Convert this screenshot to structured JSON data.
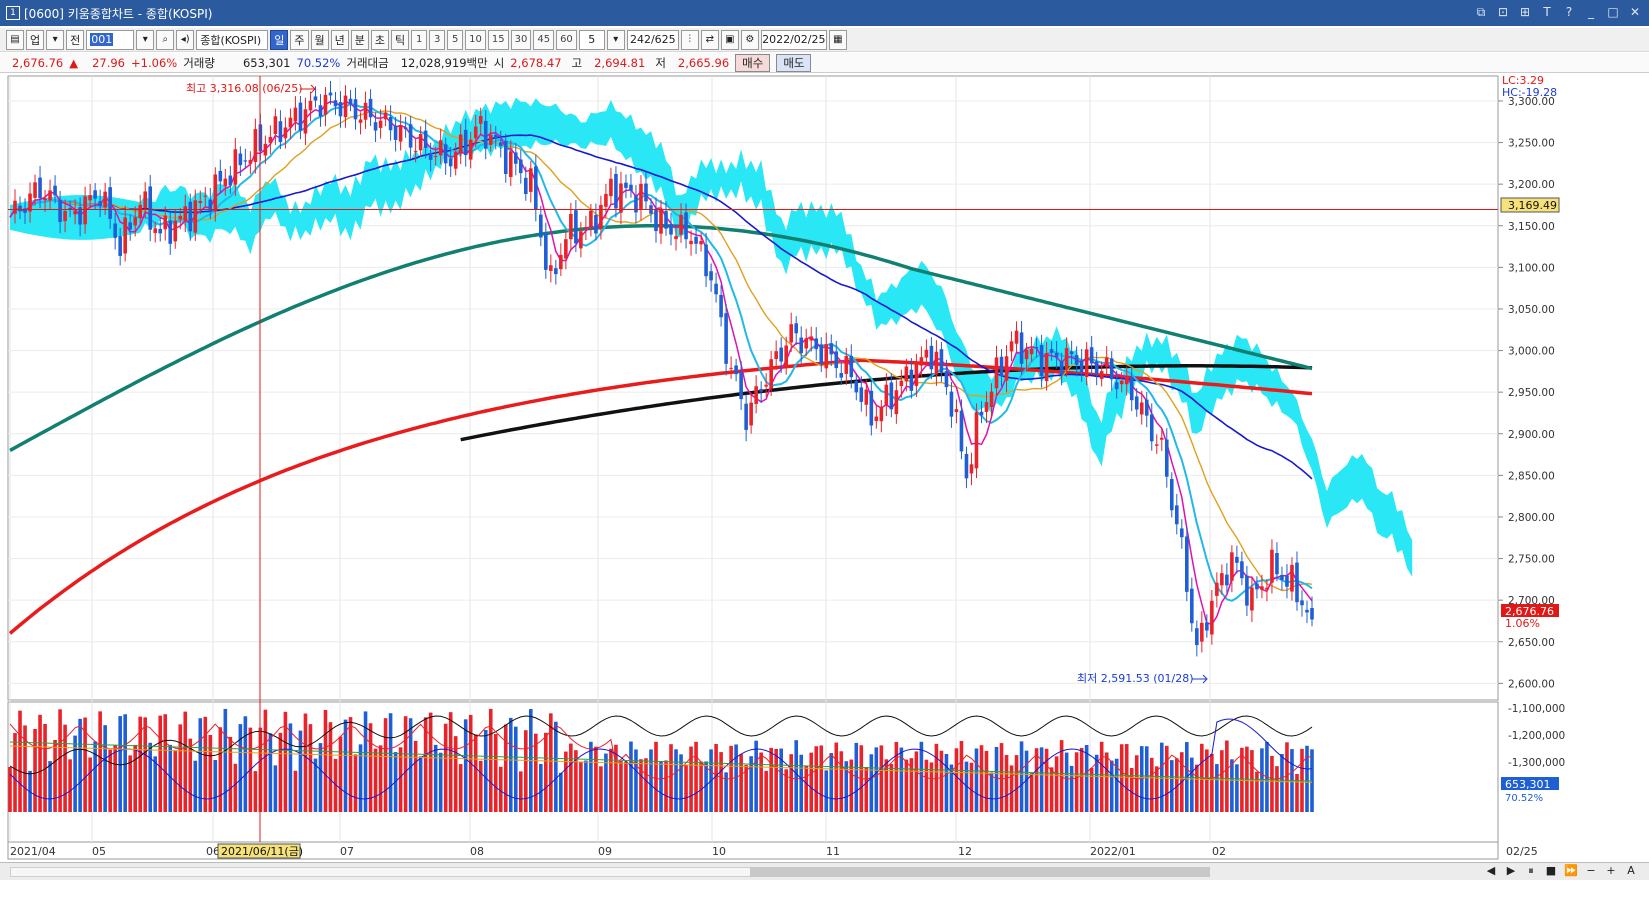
{
  "window": {
    "title": "[0600] 키움종합차트 - 종합(KOSPI)",
    "window_icon": "1",
    "controls": [
      "⧉",
      "⊡",
      "⊞",
      "T",
      "?",
      "_",
      "□",
      "✕"
    ]
  },
  "toolbar": {
    "market": "업",
    "prev": "전",
    "code": "001",
    "name": "종합(KOSPI)",
    "periods": [
      "일",
      "주",
      "월",
      "년",
      "분",
      "초",
      "틱"
    ],
    "active_period": "일",
    "minute_units": [
      "1",
      "3",
      "5",
      "10",
      "15",
      "30",
      "45",
      "60"
    ],
    "unit_value": "5",
    "count": "242/625",
    "date": "2022/02/25"
  },
  "info": {
    "price": "2,676.76",
    "direction": "▲",
    "change": "27.96",
    "change_pct": "+1.06%",
    "volume_label": "거래량",
    "volume": "653,301",
    "volume_ratio": "70.52%",
    "amount_label": "거래대금",
    "amount": "12,028,919백만",
    "open_label": "시",
    "open": "2,678.47",
    "high_label": "고",
    "high": "2,694.81",
    "low_label": "저",
    "low": "2,665.96",
    "buy_button": "매수",
    "sell_button": "매도"
  },
  "chart": {
    "lc_label": "LC:3.29",
    "hc_label": "HC:-19.28",
    "crosshair_value": "3,169.49",
    "crosshair_date": "2021/06/11(금)",
    "high_annotation": "최고 3,316.08 (06/25)",
    "low_annotation": "최저 2,591.53 (01/28)",
    "current_price_label": "2,676.76",
    "current_pct_label": "1.06%",
    "volume_current_label": "653,301",
    "volume_pct_label": "70.52%",
    "x_labels": [
      "2021/04",
      "05",
      "06",
      "07",
      "08",
      "09",
      "10",
      "11",
      "12",
      "2022/01",
      "02",
      "02/25"
    ],
    "price_ticks": [
      "3,300.00",
      "3,250.00",
      "3,200.00",
      "3,150.00",
      "3,100.00",
      "3,050.00",
      "3,000.00",
      "2,950.00",
      "2,900.00",
      "2,850.00",
      "2,800.00",
      "2,750.00",
      "2,700.00",
      "2,650.00",
      "2,600.00"
    ],
    "volume_ticks": [
      "-1,100,000",
      "-1,200,000",
      "-1,300,000"
    ],
    "colors": {
      "up": "#e8232a",
      "down": "#1f5fd6",
      "cloud": "#1fe6f5",
      "ma5": "#e010b0",
      "ma20": "#22b8e8",
      "ma60": "#e0a020",
      "ma120": "#1818d0",
      "ma240": "#118070",
      "ma_red": "#e81c1c",
      "ma_black": "#111111"
    }
  },
  "chart_data": {
    "type": "candlestick",
    "title": "종합(KOSPI)",
    "period": "일",
    "x_range": [
      "2021/04",
      "2022/02/25"
    ],
    "ylim": [
      2580,
      3330
    ],
    "high": {
      "value": 3316.08,
      "date": "06/25"
    },
    "low": {
      "value": 2591.53,
      "date": "01/28"
    },
    "last": {
      "open": 2678.47,
      "high": 2694.81,
      "low": 2665.96,
      "close": 2676.76,
      "change": 27.96,
      "change_pct": 1.06,
      "volume": 653301
    },
    "monthly_closes_approx": {
      "2021/04": 3150,
      "2021/05": 3200,
      "2021/06": 3296,
      "2021/07": 3202,
      "2021/08": 3199,
      "2021/09": 3068,
      "2021/10": 2970,
      "2021/11": 2839,
      "2021/12": 2977,
      "2022/01": 2663,
      "2022/02": 2676.76
    }
  },
  "scrollbar": {
    "controls": [
      "◀",
      "▶",
      "⏸",
      "■",
      "⏩",
      "−",
      "+",
      "A"
    ]
  }
}
